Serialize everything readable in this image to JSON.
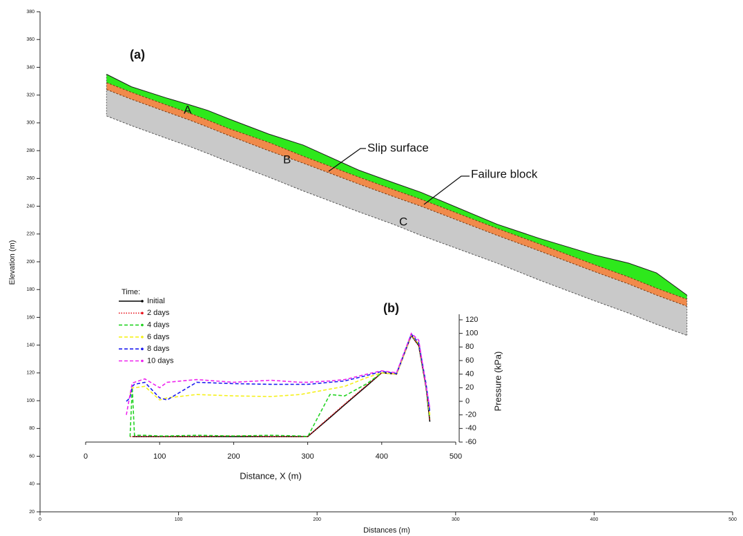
{
  "chart_data": [
    {
      "type": "area",
      "title": "(a)",
      "xlabel": "Distances (m)",
      "ylabel": "Elevation (m)",
      "xlim": [
        0,
        500
      ],
      "xticks": [
        0,
        100,
        200,
        300,
        400,
        500
      ],
      "ylim": [
        20,
        380
      ],
      "yticks": [
        20,
        40,
        60,
        80,
        100,
        120,
        140,
        160,
        180,
        200,
        220,
        240,
        260,
        280,
        300,
        320,
        340,
        360,
        380
      ],
      "annotations": [
        "A",
        "B",
        "C",
        "Slip surface",
        "Failure block"
      ],
      "x": [
        48,
        66,
        91,
        108,
        121,
        136,
        165,
        190,
        230,
        255,
        275,
        330,
        360,
        400,
        425,
        445,
        467
      ],
      "series": [
        {
          "color": "#2ee81c",
          "values": [
            335,
            326,
            318,
            313,
            309,
            303,
            292,
            284,
            266,
            257,
            250,
            227,
            217,
            205,
            199,
            192,
            176
          ]
        },
        {
          "color": "#f08a4b",
          "values": [
            329,
            322,
            313,
            307,
            302,
            296,
            286,
            276,
            261,
            252,
            245,
            224,
            213,
            198,
            189,
            181,
            173
          ]
        },
        {
          "color": "#c9c9c9",
          "values": [
            324,
            317,
            308,
            302,
            297,
            291,
            280,
            271,
            256,
            247,
            240,
            219,
            208,
            193,
            184,
            176,
            168
          ]
        },
        {
          "color": "#333333",
          "values": [
            305,
            298,
            289,
            283,
            278,
            272,
            261,
            251,
            236,
            227,
            219,
            199,
            187,
            172,
            163,
            155,
            147
          ]
        }
      ]
    },
    {
      "type": "line",
      "title": "(b)",
      "xlabel": "Distance, X (m)",
      "y2label": "Pressure (kPa)",
      "legend_title": "Time:",
      "xlim": [
        0,
        500
      ],
      "xticks": [
        0,
        100,
        200,
        300,
        400,
        500
      ],
      "y2lim": [
        -60,
        120
      ],
      "y2ticks": [
        -60,
        -40,
        -20,
        0,
        20,
        40,
        60,
        80,
        100,
        120
      ],
      "x": [
        55,
        60,
        63,
        66,
        80,
        100,
        110,
        150,
        200,
        250,
        290,
        300,
        330,
        350,
        380,
        400,
        420,
        440,
        450,
        460,
        465
      ],
      "series": [
        {
          "name": "Initial",
          "color": "#000000",
          "linestyle": "solid",
          "axis": "y2",
          "values": [
            null,
            null,
            -52,
            -52,
            -52,
            -52,
            -52,
            -52,
            -52,
            -52,
            -52,
            -52,
            -24,
            -5,
            23,
            42,
            40,
            97,
            82,
            20,
            -30
          ]
        },
        {
          "name": "2 days",
          "color": "#e8141e",
          "linestyle": "dotted",
          "axis": "y2",
          "values": [
            null,
            -52,
            -52,
            -52,
            -52,
            -52,
            -52,
            -52,
            -51,
            -52,
            -52,
            -52,
            -23,
            -4,
            24,
            42,
            40,
            97,
            82,
            20,
            -28
          ]
        },
        {
          "name": "4 days",
          "color": "#22d322",
          "linestyle": "dashed",
          "axis": "y2",
          "values": [
            null,
            -52,
            20,
            -50,
            -50,
            -51,
            -51,
            -50,
            -51,
            -50,
            -51,
            -52,
            10,
            8,
            26,
            42,
            40,
            98,
            84,
            22,
            -25
          ]
        },
        {
          "name": "6 days",
          "color": "#f5f01a",
          "linestyle": "dashed",
          "axis": "y2",
          "values": [
            null,
            10,
            20,
            20,
            22,
            2,
            5,
            10,
            8,
            7,
            10,
            12,
            18,
            22,
            35,
            42,
            40,
            98,
            85,
            24,
            -20
          ]
        },
        {
          "name": "8 days",
          "color": "#1c1cf0",
          "linestyle": "dashed",
          "axis": "y2",
          "values": [
            0,
            5,
            22,
            25,
            28,
            5,
            2,
            28,
            26,
            25,
            25,
            25,
            28,
            30,
            38,
            44,
            41,
            99,
            86,
            25,
            -15
          ]
        },
        {
          "name": "10 days",
          "color": "#ee22ee",
          "linestyle": "dashed",
          "axis": "y2",
          "values": [
            -20,
            10,
            27,
            28,
            33,
            20,
            28,
            32,
            28,
            31,
            28,
            28,
            30,
            32,
            40,
            45,
            42,
            100,
            90,
            22,
            -10
          ]
        }
      ]
    }
  ]
}
